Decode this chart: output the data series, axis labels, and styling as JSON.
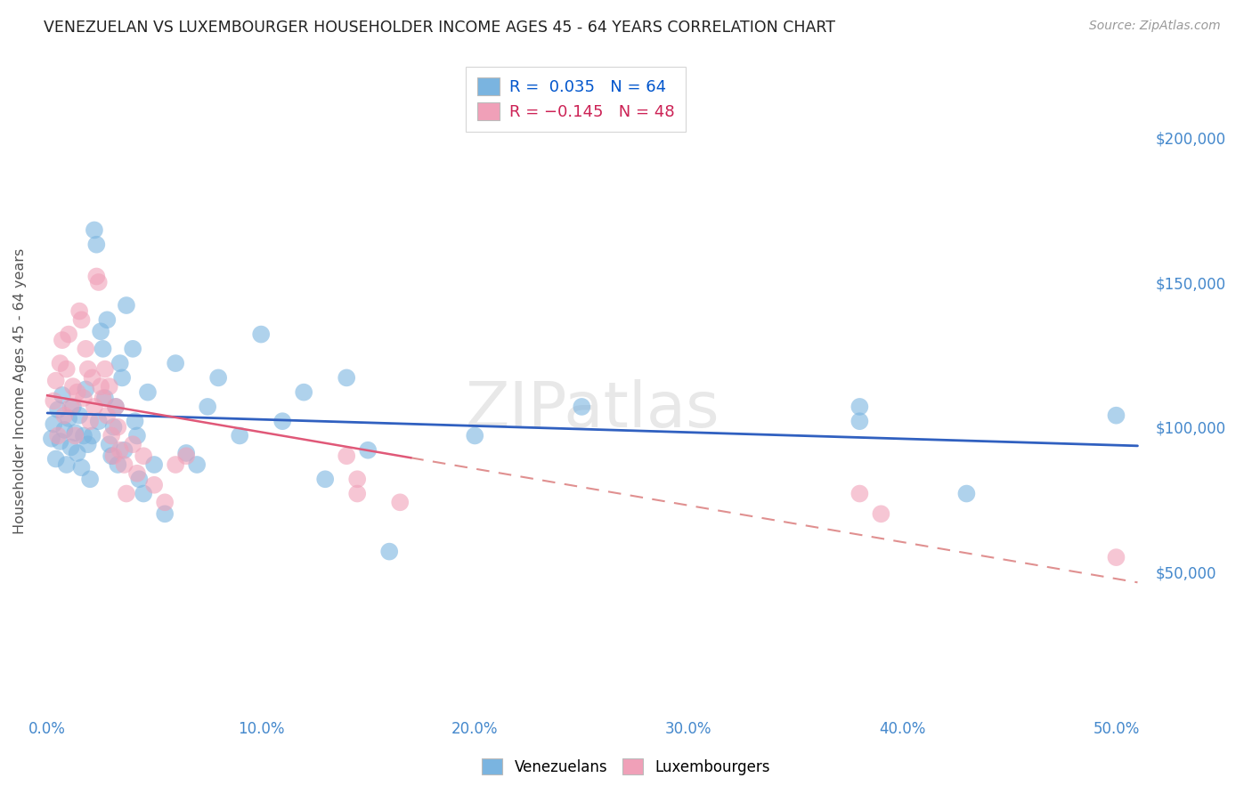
{
  "title": "VENEZUELAN VS LUXEMBOURGER HOUSEHOLDER INCOME AGES 45 - 64 YEARS CORRELATION CHART",
  "source": "Source: ZipAtlas.com",
  "xlabel_ticks": [
    "0.0%",
    "10.0%",
    "20.0%",
    "30.0%",
    "40.0%",
    "50.0%"
  ],
  "xlabel_vals": [
    0.0,
    0.1,
    0.2,
    0.3,
    0.4,
    0.5
  ],
  "ylabel_ticks": [
    "$50,000",
    "$100,000",
    "$150,000",
    "$200,000"
  ],
  "ylabel_vals": [
    50000,
    100000,
    150000,
    200000
  ],
  "ylim": [
    0,
    225000
  ],
  "xlim": [
    -0.005,
    0.515
  ],
  "ylabel": "Householder Income Ages 45 - 64 years",
  "watermark": "ZIPatlas",
  "legend_label1": "Venezuelans",
  "legend_label2": "Luxembourgers",
  "blue_color": "#7ab4e0",
  "pink_color": "#f0a0b8",
  "blue_line_color": "#3060c0",
  "pink_line_solid_color": "#e05878",
  "pink_line_dash_color": "#e09090",
  "grid_color": "#dddddd",
  "bg_color": "#ffffff",
  "title_color": "#222222",
  "source_color": "#999999",
  "ylabel_color": "#555555",
  "tick_color": "#4488cc",
  "legend_R_blue": "#0055cc",
  "legend_R_pink": "#cc2255",
  "legend_N_blue": "#0055cc",
  "legend_N_pink": "#cc2255",
  "blue_scatter": [
    [
      0.002,
      96000
    ],
    [
      0.003,
      101000
    ],
    [
      0.004,
      89000
    ],
    [
      0.005,
      106000
    ],
    [
      0.006,
      95000
    ],
    [
      0.007,
      111000
    ],
    [
      0.008,
      99000
    ],
    [
      0.009,
      87000
    ],
    [
      0.01,
      103000
    ],
    [
      0.011,
      93000
    ],
    [
      0.012,
      107000
    ],
    [
      0.013,
      98000
    ],
    [
      0.014,
      91000
    ],
    [
      0.015,
      104000
    ],
    [
      0.016,
      86000
    ],
    [
      0.017,
      97000
    ],
    [
      0.018,
      113000
    ],
    [
      0.019,
      94000
    ],
    [
      0.02,
      82000
    ],
    [
      0.021,
      97000
    ],
    [
      0.022,
      168000
    ],
    [
      0.023,
      163000
    ],
    [
      0.024,
      102000
    ],
    [
      0.025,
      133000
    ],
    [
      0.026,
      127000
    ],
    [
      0.027,
      110000
    ],
    [
      0.028,
      137000
    ],
    [
      0.029,
      94000
    ],
    [
      0.03,
      90000
    ],
    [
      0.031,
      100000
    ],
    [
      0.032,
      107000
    ],
    [
      0.033,
      87000
    ],
    [
      0.034,
      122000
    ],
    [
      0.035,
      117000
    ],
    [
      0.036,
      92000
    ],
    [
      0.037,
      142000
    ],
    [
      0.04,
      127000
    ],
    [
      0.041,
      102000
    ],
    [
      0.042,
      97000
    ],
    [
      0.043,
      82000
    ],
    [
      0.045,
      77000
    ],
    [
      0.047,
      112000
    ],
    [
      0.05,
      87000
    ],
    [
      0.055,
      70000
    ],
    [
      0.06,
      122000
    ],
    [
      0.065,
      91000
    ],
    [
      0.07,
      87000
    ],
    [
      0.075,
      107000
    ],
    [
      0.08,
      117000
    ],
    [
      0.09,
      97000
    ],
    [
      0.1,
      132000
    ],
    [
      0.11,
      102000
    ],
    [
      0.12,
      112000
    ],
    [
      0.13,
      82000
    ],
    [
      0.14,
      117000
    ],
    [
      0.15,
      92000
    ],
    [
      0.16,
      57000
    ],
    [
      0.2,
      97000
    ],
    [
      0.25,
      107000
    ],
    [
      0.38,
      107000
    ],
    [
      0.38,
      102000
    ],
    [
      0.43,
      77000
    ],
    [
      0.5,
      104000
    ]
  ],
  "pink_scatter": [
    [
      0.003,
      109000
    ],
    [
      0.004,
      116000
    ],
    [
      0.005,
      97000
    ],
    [
      0.006,
      122000
    ],
    [
      0.007,
      130000
    ],
    [
      0.008,
      104000
    ],
    [
      0.009,
      120000
    ],
    [
      0.01,
      132000
    ],
    [
      0.011,
      107000
    ],
    [
      0.012,
      114000
    ],
    [
      0.013,
      97000
    ],
    [
      0.014,
      112000
    ],
    [
      0.015,
      140000
    ],
    [
      0.016,
      137000
    ],
    [
      0.017,
      110000
    ],
    [
      0.018,
      127000
    ],
    [
      0.019,
      120000
    ],
    [
      0.02,
      102000
    ],
    [
      0.021,
      117000
    ],
    [
      0.022,
      107000
    ],
    [
      0.023,
      152000
    ],
    [
      0.024,
      150000
    ],
    [
      0.025,
      114000
    ],
    [
      0.026,
      110000
    ],
    [
      0.027,
      120000
    ],
    [
      0.028,
      104000
    ],
    [
      0.029,
      114000
    ],
    [
      0.03,
      97000
    ],
    [
      0.031,
      90000
    ],
    [
      0.032,
      107000
    ],
    [
      0.033,
      100000
    ],
    [
      0.034,
      92000
    ],
    [
      0.036,
      87000
    ],
    [
      0.037,
      77000
    ],
    [
      0.04,
      94000
    ],
    [
      0.042,
      84000
    ],
    [
      0.045,
      90000
    ],
    [
      0.05,
      80000
    ],
    [
      0.055,
      74000
    ],
    [
      0.06,
      87000
    ],
    [
      0.065,
      90000
    ],
    [
      0.14,
      90000
    ],
    [
      0.145,
      82000
    ],
    [
      0.145,
      77000
    ],
    [
      0.165,
      74000
    ],
    [
      0.38,
      77000
    ],
    [
      0.39,
      70000
    ],
    [
      0.5,
      55000
    ]
  ],
  "blue_intercept": 100000,
  "blue_slope": 5000,
  "pink_intercept": 110000,
  "pink_slope": -35000
}
